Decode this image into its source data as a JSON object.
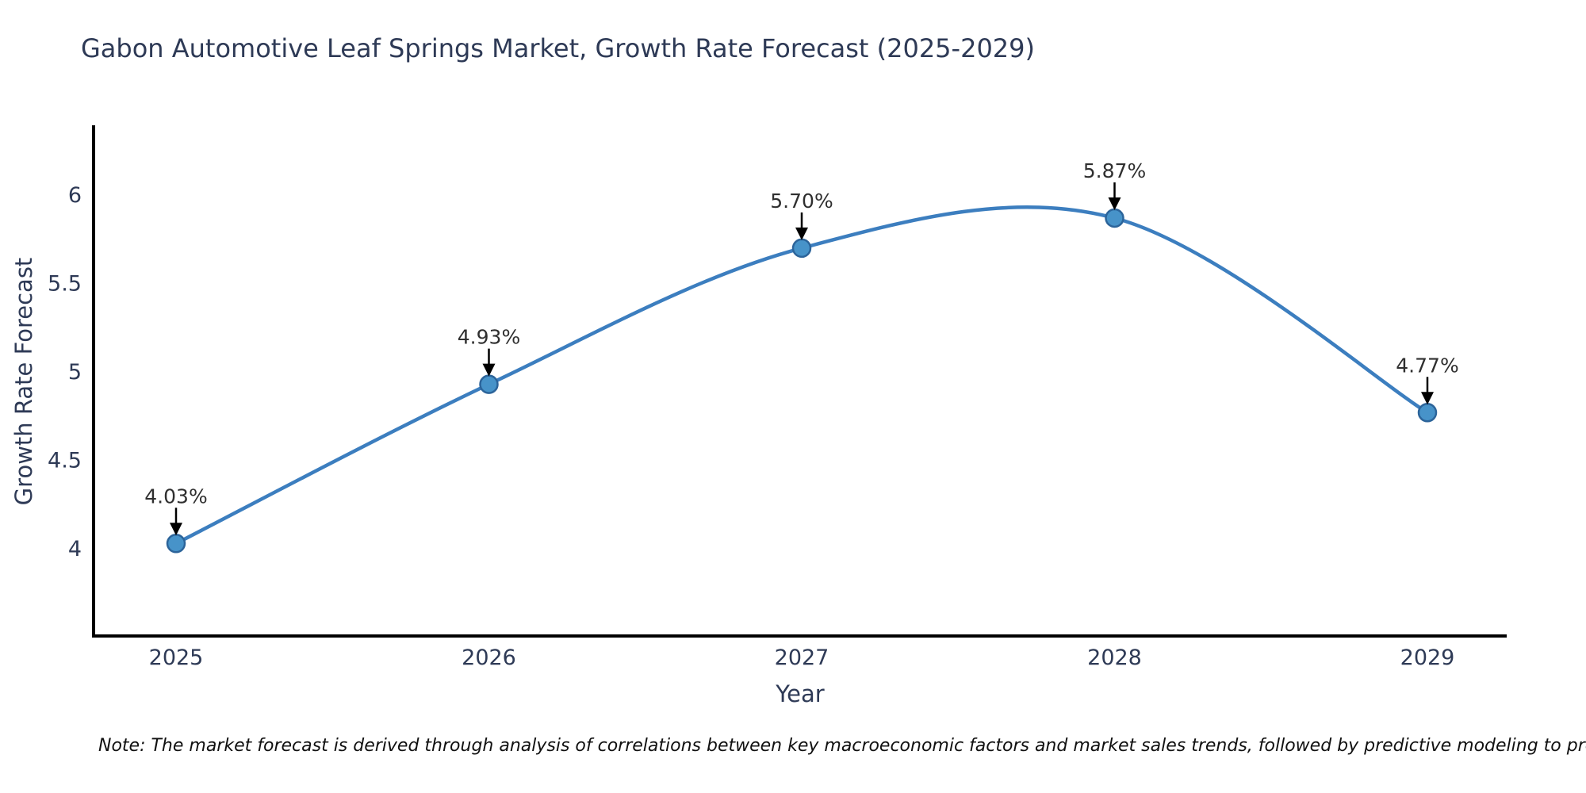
{
  "note": "Note: The market forecast is derived through analysis of correlations between key macroeconomic factors and market sales trends, followed by predictive modeling to project future sales",
  "chart_data": {
    "type": "line",
    "title": "Gabon Automotive Leaf Springs Market, Growth Rate Forecast (2025-2029)",
    "xlabel": "Year",
    "ylabel": "Growth Rate Forecast",
    "x": [
      2025,
      2026,
      2027,
      2028,
      2029
    ],
    "x_tick_labels": [
      "2025",
      "2026",
      "2027",
      "2028",
      "2029"
    ],
    "series": [
      {
        "name": "Growth Rate Forecast",
        "values": [
          4.03,
          4.93,
          5.7,
          5.87,
          4.77
        ]
      }
    ],
    "point_labels": [
      "4.03%",
      "4.93%",
      "5.70%",
      "5.87%",
      "4.77%"
    ],
    "y_ticks": [
      4,
      4.5,
      5,
      5.5,
      6
    ],
    "y_tick_labels": [
      "4",
      "4.5",
      "5",
      "5.5",
      "6"
    ],
    "ylim": [
      3.5,
      6.4
    ],
    "xlim": [
      2024.74,
      2029.26
    ],
    "grid": false,
    "legend": "none",
    "smooth": true,
    "line_color": "#3c7ebf",
    "marker_color": "#4793c9",
    "marker_edge_color": "#2c649a",
    "axis_color": "#000000",
    "annotation_color": "#2f2f2f",
    "arrow_color": "#000000"
  }
}
